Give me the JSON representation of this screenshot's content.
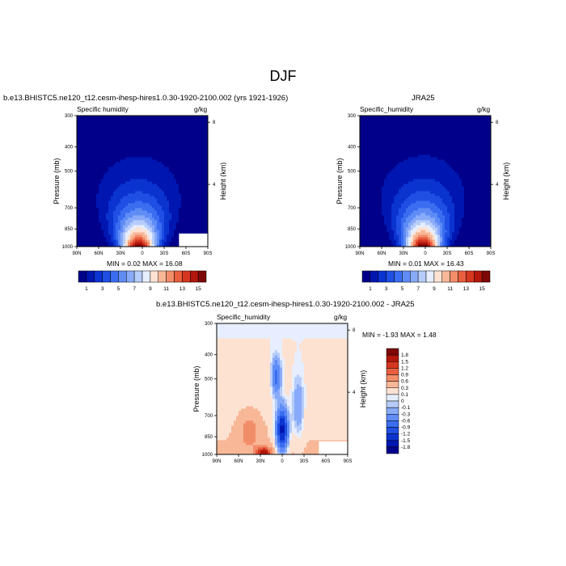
{
  "figure": {
    "main_title": "DJF"
  },
  "chart_data": [
    {
      "type": "heatmap",
      "title": "b.e13.BHISTC5.ne120_t12.cesm-ihesp-hires1.0.30-1920-2100.002 (yrs 1921-1926)",
      "left_label": "Specific humidity",
      "right_label": "g/kg",
      "xlabel": "",
      "ylabel": "Pressure (mb)",
      "ylabel_right": "Height (km)",
      "x_ticks": [
        "90N",
        "60N",
        "30N",
        "0",
        "30S",
        "60S",
        "90S"
      ],
      "y_ticks": [
        "300",
        "400",
        "500",
        "700",
        "850",
        "1000"
      ],
      "y_right_ticks": [
        "8",
        "4"
      ],
      "xlim": [
        90,
        -90
      ],
      "ylim": [
        1000,
        300
      ],
      "min_label": "MIN =   0.02  MAX =  16.08",
      "min": 0.02,
      "max": 16.08,
      "colorbar": {
        "orientation": "horizontal",
        "labels": [
          "1",
          "3",
          "5",
          "7",
          "9",
          "11",
          "13",
          "15"
        ],
        "levels": [
          1,
          2,
          3,
          4,
          5,
          6,
          7,
          8,
          9,
          10,
          11,
          12,
          13,
          14,
          15
        ],
        "colors": [
          "#00008a",
          "#0016b0",
          "#0a33d0",
          "#1f4fe3",
          "#3a6df0",
          "#5f8cf5",
          "#88aaf8",
          "#b6cdfb",
          "#e6eeff",
          "#fde2d2",
          "#f8b797",
          "#f28d6a",
          "#e85e3e",
          "#d53620",
          "#b3160c",
          "#7e0707"
        ]
      },
      "peak": 16.08,
      "peak_lat": 5,
      "spread": 24,
      "scale_height": 2.1,
      "masked_box": true
    },
    {
      "type": "heatmap",
      "title": "JRA25",
      "left_label": "Specific_humidity",
      "right_label": "g/kg",
      "xlabel": "",
      "ylabel": "Pressure (mb)",
      "ylabel_right": "Height (km)",
      "x_ticks": [
        "90N",
        "60N",
        "30N",
        "0",
        "30S",
        "60S",
        "90S"
      ],
      "y_ticks": [
        "300",
        "400",
        "500",
        "700",
        "850",
        "1000"
      ],
      "y_right_ticks": [
        "8",
        "4"
      ],
      "xlim": [
        90,
        -90
      ],
      "ylim": [
        1000,
        300
      ],
      "min_label": "MIN =   0.01  MAX =  16.43",
      "min": 0.01,
      "max": 16.43,
      "colorbar": {
        "orientation": "horizontal",
        "labels": [
          "1",
          "3",
          "5",
          "7",
          "9",
          "11",
          "13",
          "15"
        ],
        "levels": [
          1,
          2,
          3,
          4,
          5,
          6,
          7,
          8,
          9,
          10,
          11,
          12,
          13,
          14,
          15
        ],
        "colors": [
          "#00008a",
          "#0016b0",
          "#0a33d0",
          "#1f4fe3",
          "#3a6df0",
          "#5f8cf5",
          "#88aaf8",
          "#b6cdfb",
          "#e6eeff",
          "#fde2d2",
          "#f8b797",
          "#f28d6a",
          "#e85e3e",
          "#d53620",
          "#b3160c",
          "#7e0707"
        ]
      },
      "peak": 16.43,
      "peak_lat": 3,
      "spread": 24,
      "scale_height": 2.1,
      "masked_box": false
    },
    {
      "type": "heatmap",
      "title": "b.e13.BHISTC5.ne120_t12.cesm-ihesp-hires1.0.30-1920-2100.002 - JRA25",
      "left_label": "Specific_humidity",
      "right_label": "g/kg",
      "xlabel": "",
      "ylabel": "Pressure (mb)",
      "ylabel_right": "Height (km)",
      "x_ticks": [
        "90N",
        "60N",
        "30N",
        "0",
        "30S",
        "60S",
        "90S"
      ],
      "y_ticks": [
        "300",
        "400",
        "500",
        "700",
        "850",
        "1000"
      ],
      "y_right_ticks": [
        "8",
        "4"
      ],
      "xlim": [
        90,
        -90
      ],
      "ylim": [
        1000,
        300
      ],
      "min_label": "MIN =  -1.93  MAX =   1.48",
      "min": -1.93,
      "max": 1.48,
      "colorbar": {
        "orientation": "vertical",
        "labels": [
          "1.8",
          "1.5",
          "1.2",
          "0.9",
          "0.6",
          "0.3",
          "0.1",
          "0",
          "-0.1",
          "-0.3",
          "-0.6",
          "-0.9",
          "-1.2",
          "-1.5",
          "-1.8"
        ],
        "levels": [
          -1.8,
          -1.5,
          -1.2,
          -0.9,
          -0.6,
          -0.3,
          -0.1,
          0,
          0.1,
          0.3,
          0.6,
          0.9,
          1.2,
          1.5,
          1.8
        ],
        "colors": [
          "#00008a",
          "#0016b0",
          "#0a33d0",
          "#1f4fe3",
          "#3a6df0",
          "#5f8cf5",
          "#88aaf8",
          "#b6cdfb",
          "#e6eeff",
          "#fde2d2",
          "#f8b797",
          "#f28d6a",
          "#e85e3e",
          "#d53620",
          "#b3160c",
          "#7e0707"
        ]
      },
      "masked_box": true
    }
  ]
}
